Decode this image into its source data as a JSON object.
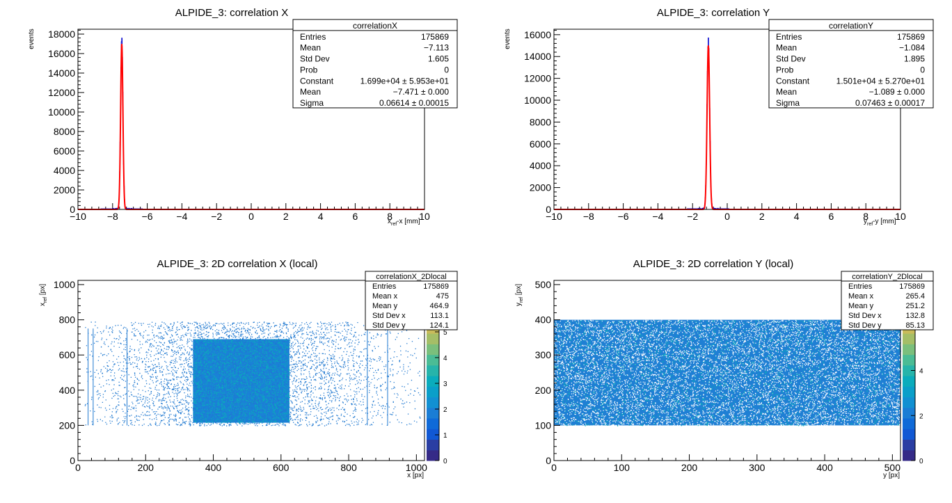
{
  "chart_data": [
    {
      "type": "histogram",
      "title": "ALPIDE_3: correlation X",
      "ylabel": "events",
      "xlabel_main": "x",
      "xlabel_sub": "ref",
      "xlabel_tail": "-x [mm]",
      "xlim": [
        -10,
        10
      ],
      "ylim": [
        0,
        18500
      ],
      "xticks": [
        -10,
        -8,
        -6,
        -4,
        -2,
        0,
        2,
        4,
        6,
        8,
        10
      ],
      "xtick_labels": [
        "−10",
        "−8",
        "−6",
        "−4",
        "−2",
        "0",
        "2",
        "4",
        "6",
        "8",
        "10"
      ],
      "yticks": [
        0,
        2000,
        4000,
        6000,
        8000,
        10000,
        12000,
        14000,
        16000,
        18000
      ],
      "ytick_labels": [
        "0",
        "2000",
        "4000",
        "6000",
        "8000",
        "10000",
        "12000",
        "14000",
        "16000",
        "18000"
      ],
      "peak_mean": -7.471,
      "peak_sigma": 0.06614,
      "peak_height": 17700,
      "fit_constant": 16990,
      "hist_color": "#0000cc",
      "fit_color": "#ff0000",
      "stats": {
        "name": "correlationX",
        "rows": [
          {
            "label": "Entries",
            "value": "175869"
          },
          {
            "label": "Mean",
            "value": "−7.113"
          },
          {
            "label": "Std Dev",
            "value": "1.605"
          },
          {
            "label": "Prob",
            "value": "0"
          },
          {
            "label": "Constant",
            "value": "1.699e+04 ± 5.953e+01"
          },
          {
            "label": "Mean",
            "value": "−7.471 ± 0.000"
          },
          {
            "label": "Sigma",
            "value": "0.06614 ± 0.00015"
          }
        ]
      }
    },
    {
      "type": "histogram",
      "title": "ALPIDE_3: correlation Y",
      "ylabel": "events",
      "xlabel_main": "y",
      "xlabel_sub": "ref",
      "xlabel_tail": "-y [mm]",
      "xlim": [
        -10,
        10
      ],
      "ylim": [
        0,
        16500
      ],
      "xticks": [
        -10,
        -8,
        -6,
        -4,
        -2,
        0,
        2,
        4,
        6,
        8,
        10
      ],
      "xtick_labels": [
        "−10",
        "−8",
        "−6",
        "−4",
        "−2",
        "0",
        "2",
        "4",
        "6",
        "8",
        "10"
      ],
      "yticks": [
        0,
        2000,
        4000,
        6000,
        8000,
        10000,
        12000,
        14000,
        16000
      ],
      "ytick_labels": [
        "0",
        "2000",
        "4000",
        "6000",
        "8000",
        "10000",
        "12000",
        "14000",
        "16000"
      ],
      "peak_mean": -1.089,
      "peak_sigma": 0.07463,
      "peak_height": 15600,
      "fit_constant": 15010,
      "hist_color": "#0000cc",
      "fit_color": "#ff0000",
      "stats": {
        "name": "correlationY",
        "rows": [
          {
            "label": "Entries",
            "value": "175869"
          },
          {
            "label": "Mean",
            "value": "−1.084"
          },
          {
            "label": "Std Dev",
            "value": "1.895"
          },
          {
            "label": "Prob",
            "value": "0"
          },
          {
            "label": "Constant",
            "value": "1.501e+04 ± 5.270e+01"
          },
          {
            "label": "Mean",
            "value": "−1.089 ± 0.000"
          },
          {
            "label": "Sigma",
            "value": "0.07463 ± 0.00017"
          }
        ]
      }
    },
    {
      "type": "heatmap",
      "title": "ALPIDE_3: 2D correlation X (local)",
      "xlabel": "x [px]",
      "ylabel_main": "x",
      "ylabel_sub": "ref",
      "ylabel_tail": " [px]",
      "xlim": [
        0,
        1024
      ],
      "ylim": [
        0,
        1024
      ],
      "xticks": [
        0,
        200,
        400,
        600,
        800,
        1000
      ],
      "xtick_labels": [
        "0",
        "200",
        "400",
        "600",
        "800",
        "1000"
      ],
      "yticks": [
        0,
        200,
        400,
        600,
        800,
        1000
      ],
      "ytick_labels": [
        "0",
        "200",
        "400",
        "600",
        "800",
        "1000"
      ],
      "zlim": [
        0,
        7
      ],
      "zticks": [
        0,
        1,
        2,
        3,
        4,
        5,
        6
      ],
      "ztick_labels": [
        "0",
        "1",
        "2",
        "3",
        "4",
        "5",
        "6"
      ],
      "sparse_region": {
        "x": [
          20,
          1010
        ],
        "y": [
          200,
          790
        ]
      },
      "dense_region": {
        "x": [
          340,
          625
        ],
        "y": [
          215,
          690
        ]
      },
      "vertical_lines_x": [
        30,
        45,
        145,
        855,
        915
      ],
      "stats": {
        "name": "correlationX_2Dlocal",
        "rows": [
          {
            "label": "Entries",
            "value": "175869"
          },
          {
            "label": "Mean x",
            "value": "475"
          },
          {
            "label": "Mean y",
            "value": "464.9"
          },
          {
            "label": "Std Dev x",
            "value": "113.1"
          },
          {
            "label": "Std Dev y",
            "value": "124.1"
          }
        ]
      }
    },
    {
      "type": "heatmap",
      "title": "ALPIDE_3: 2D correlation Y (local)",
      "xlabel": "y [px]",
      "ylabel_main": "y",
      "ylabel_sub": "ref",
      "ylabel_tail": " [px]",
      "xlim": [
        0,
        512
      ],
      "ylim": [
        0,
        512
      ],
      "xticks": [
        0,
        100,
        200,
        300,
        400,
        500
      ],
      "xtick_labels": [
        "0",
        "100",
        "200",
        "300",
        "400",
        "500"
      ],
      "yticks": [
        0,
        100,
        200,
        300,
        400,
        500
      ],
      "ytick_labels": [
        "0",
        "100",
        "200",
        "300",
        "400",
        "500"
      ],
      "zlim": [
        0,
        8
      ],
      "zticks": [
        0,
        2,
        4,
        6
      ],
      "ztick_labels": [
        "0",
        "2",
        "4",
        "6"
      ],
      "filled_region": {
        "x": [
          0,
          512
        ],
        "y": [
          100,
          400
        ]
      },
      "stats": {
        "name": "correlationY_2Dlocal",
        "rows": [
          {
            "label": "Entries",
            "value": "175869"
          },
          {
            "label": "Mean x",
            "value": "265.4"
          },
          {
            "label": "Mean y",
            "value": "251.2"
          },
          {
            "label": "Std Dev x",
            "value": "132.8"
          },
          {
            "label": "Std Dev y",
            "value": "85.13"
          }
        ]
      }
    }
  ]
}
